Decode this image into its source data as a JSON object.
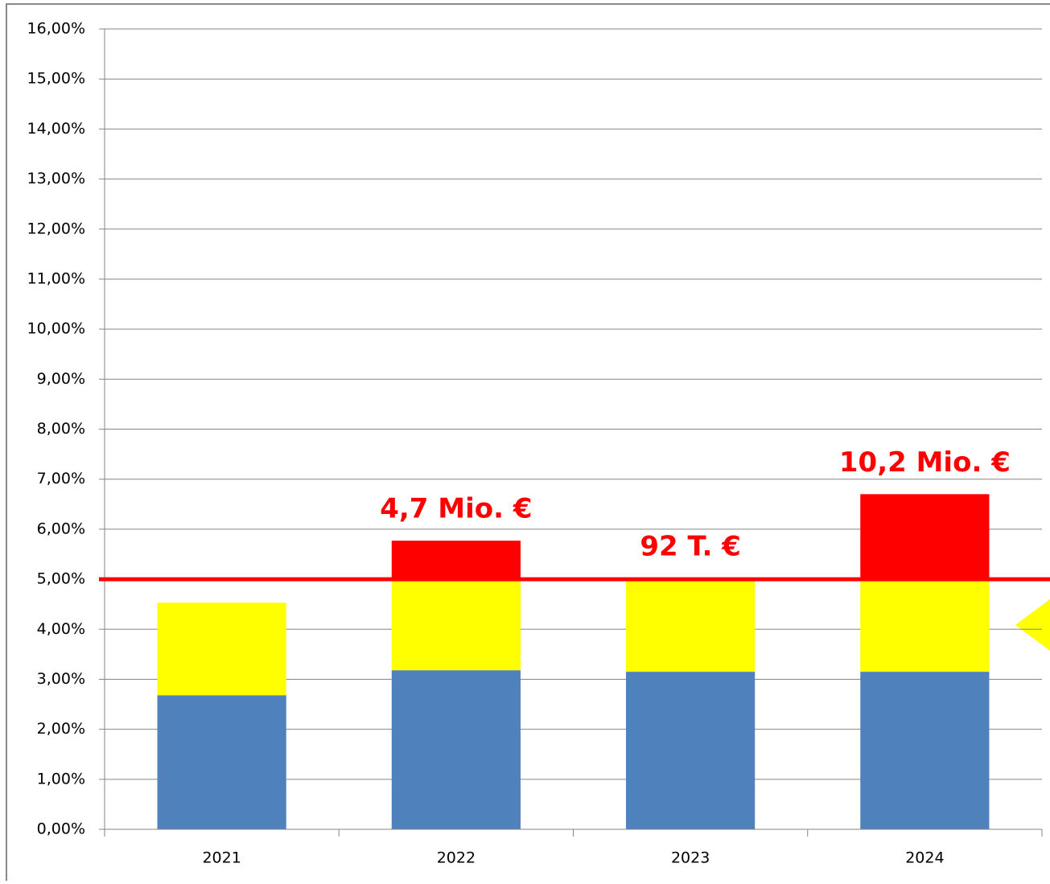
{
  "chart_data": {
    "type": "stacked_bar",
    "categories": [
      "2021",
      "2022",
      "2023",
      "2024"
    ],
    "series": [
      {
        "color": "#4f81bd",
        "values": [
          2.68,
          3.18,
          3.15,
          3.15
        ]
      },
      {
        "color": "#ffff00",
        "values": [
          1.85,
          1.85,
          1.87,
          1.85
        ]
      },
      {
        "color": "#ff0000",
        "values": [
          0,
          0.74,
          0,
          1.7
        ]
      }
    ],
    "ylim": [
      0,
      16
    ],
    "yticks": [
      {
        "value": 0,
        "label": "0,00%"
      },
      {
        "value": 1,
        "label": "1,00%"
      },
      {
        "value": 2,
        "label": "2,00%"
      },
      {
        "value": 3,
        "label": "3,00%"
      },
      {
        "value": 4,
        "label": "4,00%"
      },
      {
        "value": 5,
        "label": "5,00%"
      },
      {
        "value": 6,
        "label": "6,00%"
      },
      {
        "value": 7,
        "label": "7,00%"
      },
      {
        "value": 8,
        "label": "8,00%"
      },
      {
        "value": 9,
        "label": "9,00%"
      },
      {
        "value": 10,
        "label": "10,00%"
      },
      {
        "value": 11,
        "label": "11,00%"
      },
      {
        "value": 12,
        "label": "12,00%"
      },
      {
        "value": 13,
        "label": "13,00%"
      },
      {
        "value": 14,
        "label": "14,00%"
      },
      {
        "value": 15,
        "label": "15,00%"
      },
      {
        "value": 16,
        "label": "16,00%"
      }
    ],
    "grid": true,
    "reference_line": {
      "value": 5,
      "color": "#ff0000"
    },
    "annotations": [
      {
        "text": "4,7 Mio. €",
        "category": "2022"
      },
      {
        "text": "92 T. €",
        "category": "2023"
      },
      {
        "text": "10,2 Mio. €",
        "category": "2024"
      }
    ]
  }
}
